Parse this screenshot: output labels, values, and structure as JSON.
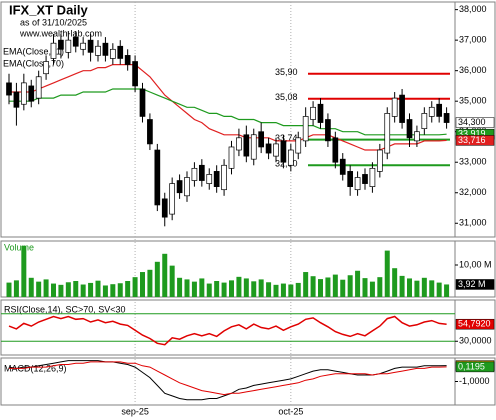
{
  "chart_data": [
    {
      "type": "candlestick",
      "title": "IFX_XT Daily",
      "subtitle": "as of 31/10/2025",
      "source": "www.wealth-lab.com",
      "categories": [
        null,
        null,
        null,
        null,
        null,
        null,
        null,
        null,
        null,
        null,
        null,
        null,
        null,
        null,
        null,
        null,
        null,
        "sep-25",
        null,
        null,
        null,
        null,
        null,
        null,
        null,
        null,
        null,
        null,
        null,
        null,
        null,
        null,
        null,
        null,
        null,
        null,
        null,
        null,
        "oct-25",
        null,
        null,
        null,
        null,
        null,
        null,
        null,
        null,
        null,
        null,
        null,
        null,
        null,
        null,
        null,
        null,
        null,
        null,
        null,
        null,
        null
      ],
      "open": [
        35.6,
        35.3,
        34.9,
        35.5,
        35.1,
        35.9,
        36.4,
        37.0,
        36.6,
        37.1,
        36.7,
        37.0,
        36.5,
        36.9,
        36.4,
        36.8,
        36.5,
        36.3,
        35.4,
        34.4,
        33.4,
        31.8,
        31.3,
        32.4,
        31.9,
        32.4,
        32.9,
        32.3,
        32.7,
        32.1,
        32.8,
        33.4,
        33.9,
        33.1,
        34.0,
        33.6,
        33.2,
        33.7,
        32.9,
        33.3,
        33.7,
        34.4,
        34.9,
        34.4,
        33.8,
        33.1,
        32.7,
        32.1,
        32.6,
        32.2,
        32.7,
        33.3,
        34.5,
        35.2,
        34.4,
        33.7,
        34.1,
        34.5,
        34.9,
        34.6
      ],
      "high": [
        35.9,
        35.6,
        35.9,
        35.7,
        36.0,
        36.5,
        37.2,
        37.2,
        37.3,
        37.3,
        37.1,
        37.2,
        37.0,
        37.1,
        36.9,
        37.0,
        36.7,
        36.5,
        35.6,
        34.6,
        33.6,
        32.0,
        32.5,
        32.6,
        32.7,
        33.0,
        33.1,
        32.8,
        32.9,
        33.1,
        33.7,
        34.1,
        34.2,
        34.1,
        34.3,
        33.8,
        33.8,
        33.9,
        33.6,
        34.0,
        34.8,
        35.0,
        35.1,
        34.6,
        34.0,
        33.3,
        32.9,
        32.7,
        32.8,
        33.0,
        33.6,
        34.8,
        35.3,
        35.4,
        34.6,
        34.2,
        34.8,
        35.0,
        35.1,
        34.8
      ],
      "low": [
        34.9,
        34.2,
        34.7,
        34.8,
        34.9,
        35.7,
        36.2,
        36.4,
        36.4,
        36.6,
        36.5,
        36.3,
        36.3,
        36.3,
        36.2,
        36.2,
        36.0,
        35.3,
        34.3,
        33.4,
        31.4,
        30.9,
        31.1,
        31.8,
        31.7,
        32.2,
        32.2,
        32.1,
        32.0,
        31.9,
        32.6,
        33.2,
        33.0,
        32.9,
        33.3,
        33.1,
        33.0,
        32.8,
        32.7,
        33.1,
        33.5,
        34.2,
        34.1,
        33.5,
        32.8,
        32.4,
        31.9,
        31.9,
        32.1,
        32.0,
        32.5,
        33.1,
        34.3,
        34.1,
        33.5,
        33.5,
        33.9,
        34.3,
        34.3,
        34.1
      ],
      "close": [
        35.2,
        34.8,
        35.6,
        35.0,
        35.8,
        36.3,
        36.9,
        36.7,
        37.0,
        36.8,
        36.9,
        36.6,
        36.8,
        36.5,
        36.7,
        36.4,
        36.2,
        35.5,
        34.5,
        33.6,
        31.6,
        31.2,
        32.3,
        32.0,
        32.5,
        32.8,
        32.4,
        32.6,
        32.2,
        32.9,
        33.5,
        33.8,
        33.2,
        33.9,
        33.5,
        33.3,
        33.6,
        33.0,
        33.4,
        33.8,
        34.5,
        34.8,
        34.3,
        33.7,
        33.0,
        32.6,
        32.2,
        32.5,
        32.3,
        32.8,
        33.4,
        34.6,
        35.1,
        34.3,
        33.8,
        34.0,
        34.6,
        34.8,
        34.5,
        34.3
      ],
      "up_color": "#ffffff",
      "down_color": "#000000",
      "ylim": [
        30.55,
        38.25
      ],
      "yticks": [
        {
          "value": 31,
          "label": "31,000"
        },
        {
          "value": 32,
          "label": "32,000"
        },
        {
          "value": 33,
          "label": "33,000"
        },
        {
          "value": 34,
          "label": "34,000"
        },
        {
          "value": 35,
          "label": "35,000"
        },
        {
          "value": 36,
          "label": "36,000"
        },
        {
          "value": 37,
          "label": "37,000"
        },
        {
          "value": 38,
          "label": "38,000"
        }
      ],
      "series": [
        {
          "name": "EMA(Close,21)",
          "color": "#e02020",
          "values": [
            35.3,
            35.3,
            35.3,
            35.3,
            35.4,
            35.5,
            35.6,
            35.7,
            35.8,
            35.9,
            36.0,
            36.0,
            36.1,
            36.1,
            36.2,
            36.2,
            36.2,
            36.2,
            36.0,
            35.8,
            35.5,
            35.2,
            35.0,
            34.8,
            34.6,
            34.4,
            34.3,
            34.1,
            34.0,
            33.9,
            33.9,
            33.9,
            33.8,
            33.8,
            33.8,
            33.8,
            33.7,
            33.7,
            33.7,
            33.7,
            33.8,
            33.9,
            33.9,
            33.9,
            33.8,
            33.7,
            33.6,
            33.5,
            33.4,
            33.4,
            33.4,
            33.5,
            33.6,
            33.6,
            33.6,
            33.6,
            33.7,
            33.7,
            33.7,
            33.716
          ]
        },
        {
          "name": "EMA(Close,70)",
          "color": "#1e9a1e",
          "values": [
            35.0,
            35.0,
            35.0,
            35.0,
            35.1,
            35.1,
            35.1,
            35.2,
            35.2,
            35.2,
            35.3,
            35.3,
            35.3,
            35.3,
            35.4,
            35.4,
            35.4,
            35.4,
            35.4,
            35.3,
            35.2,
            35.1,
            35.0,
            34.9,
            34.8,
            34.8,
            34.7,
            34.6,
            34.6,
            34.5,
            34.5,
            34.4,
            34.4,
            34.4,
            34.3,
            34.3,
            34.3,
            34.2,
            34.2,
            34.2,
            34.2,
            34.2,
            34.1,
            34.1,
            34.1,
            34.0,
            34.0,
            34.0,
            33.9,
            33.9,
            33.9,
            33.9,
            33.9,
            33.9,
            33.9,
            33.9,
            33.9,
            33.9,
            33.9,
            33.919
          ]
        }
      ],
      "levels": [
        {
          "value": 35.9,
          "label": "35,90",
          "color": "#e00000"
        },
        {
          "value": 35.08,
          "label": "35,08",
          "color": "#e00000"
        },
        {
          "value": 33.74,
          "label": "33,74",
          "color": "#1e9a1e"
        },
        {
          "value": 32.9,
          "label": "32,90",
          "color": "#1e9a1e"
        }
      ],
      "tags": [
        {
          "value": 34.3,
          "label": "34,300",
          "color": "#ffffff",
          "text_color": "#000000"
        },
        {
          "value": 33.919,
          "label": "33,919",
          "color": "#1e9a1e",
          "text_color": "#ffffff"
        },
        {
          "value": 33.716,
          "label": "33,716",
          "color": "#e02020",
          "text_color": "#ffffff"
        }
      ]
    },
    {
      "type": "bar",
      "title": "Volume",
      "color": "#1e9a1e",
      "values": [
        4.5,
        5.2,
        16.0,
        6.0,
        4.8,
        5.5,
        4.2,
        3.8,
        4.6,
        5.0,
        3.9,
        4.4,
        5.1,
        3.6,
        4.0,
        4.3,
        5.0,
        6.2,
        7.8,
        8.5,
        11.0,
        13.5,
        9.8,
        6.0,
        5.5,
        4.8,
        5.8,
        4.2,
        5.0,
        4.5,
        5.2,
        6.3,
        5.8,
        4.9,
        5.5,
        4.6,
        3.8,
        4.2,
        3.9,
        4.4,
        7.8,
        6.5,
        5.6,
        6.1,
        7.0,
        5.4,
        6.8,
        8.2,
        5.9,
        4.8,
        6.2,
        14.5,
        9.0,
        6.6,
        5.8,
        5.1,
        6.0,
        5.2,
        4.5,
        3.92
      ],
      "ylim": [
        0,
        17.5
      ],
      "yticks": [
        {
          "value": 10,
          "label": "10,00 M"
        }
      ],
      "tags": [
        {
          "value": 3.92,
          "label": "3,92 M",
          "color": "#000000",
          "text_color": "#ffffff"
        }
      ]
    },
    {
      "type": "line",
      "title": "RSI(Close,14), SC>70, SV<30",
      "color": "#e00000",
      "values": [
        52,
        48,
        56,
        52,
        58,
        62,
        66,
        63,
        66,
        62,
        63,
        58,
        61,
        57,
        59,
        55,
        53,
        46,
        39,
        34,
        27,
        25,
        35,
        33,
        38,
        41,
        38,
        41,
        37,
        45,
        51,
        54,
        48,
        55,
        50,
        48,
        52,
        46,
        51,
        55,
        62,
        64,
        57,
        51,
        44,
        40,
        37,
        41,
        38,
        45,
        52,
        63,
        66,
        57,
        52,
        54,
        58,
        60,
        56,
        54.792
      ],
      "ylim": [
        10,
        90
      ],
      "yticks": [
        {
          "value": 30,
          "label": "30,0000"
        }
      ],
      "levels": [
        {
          "value": 70,
          "color": "#1e9a1e"
        },
        {
          "value": 30,
          "color": "#1e9a1e"
        }
      ],
      "tags": [
        {
          "value": 54.792,
          "label": "54,7920",
          "color": "#e00000",
          "text_color": "#ffffff"
        }
      ]
    },
    {
      "type": "macd",
      "title": "MACD(12,26,9)",
      "lines": [
        {
          "color": "#000000",
          "values": [
            0.1,
            0.0,
            0.1,
            0.1,
            0.2,
            0.3,
            0.4,
            0.5,
            0.6,
            0.6,
            0.6,
            0.6,
            0.6,
            0.5,
            0.5,
            0.4,
            0.3,
            0.1,
            -0.3,
            -0.7,
            -1.3,
            -1.9,
            -2.1,
            -2.3,
            -2.4,
            -2.4,
            -2.4,
            -2.3,
            -2.3,
            -2.1,
            -1.9,
            -1.6,
            -1.5,
            -1.3,
            -1.2,
            -1.1,
            -1.0,
            -0.9,
            -0.8,
            -0.6,
            -0.4,
            -0.2,
            -0.1,
            -0.1,
            -0.2,
            -0.3,
            -0.4,
            -0.5,
            -0.5,
            -0.5,
            -0.4,
            -0.2,
            0.0,
            0.1,
            0.1,
            0.1,
            0.2,
            0.2,
            0.2,
            0.2181
          ]
        },
        {
          "color": "#e00000",
          "values": [
            0.0,
            0.0,
            0.0,
            0.1,
            0.1,
            0.1,
            0.2,
            0.3,
            0.3,
            0.4,
            0.4,
            0.5,
            0.5,
            0.5,
            0.5,
            0.5,
            0.4,
            0.4,
            0.2,
            0.1,
            -0.2,
            -0.5,
            -0.8,
            -1.1,
            -1.3,
            -1.5,
            -1.7,
            -1.8,
            -1.9,
            -2.0,
            -1.9,
            -1.9,
            -1.8,
            -1.7,
            -1.6,
            -1.5,
            -1.4,
            -1.3,
            -1.2,
            -1.1,
            -0.9,
            -0.8,
            -0.6,
            -0.5,
            -0.4,
            -0.4,
            -0.4,
            -0.4,
            -0.4,
            -0.5,
            -0.4,
            -0.4,
            -0.3,
            -0.2,
            -0.1,
            0.0,
            0.0,
            0.1,
            0.1,
            0.1195
          ]
        }
      ],
      "ylim": [
        -2.8,
        0.8
      ],
      "yticks": [
        {
          "value": -1,
          "label": "-1,0000"
        }
      ],
      "tags": [
        {
          "value": 0.2181,
          "label": "0,2181",
          "color": "#c8a800",
          "text_color": "#ffffff"
        },
        {
          "value": 0.1195,
          "label": "0,1195",
          "color": "#1e9a1e",
          "text_color": "#ffffff"
        }
      ]
    }
  ]
}
